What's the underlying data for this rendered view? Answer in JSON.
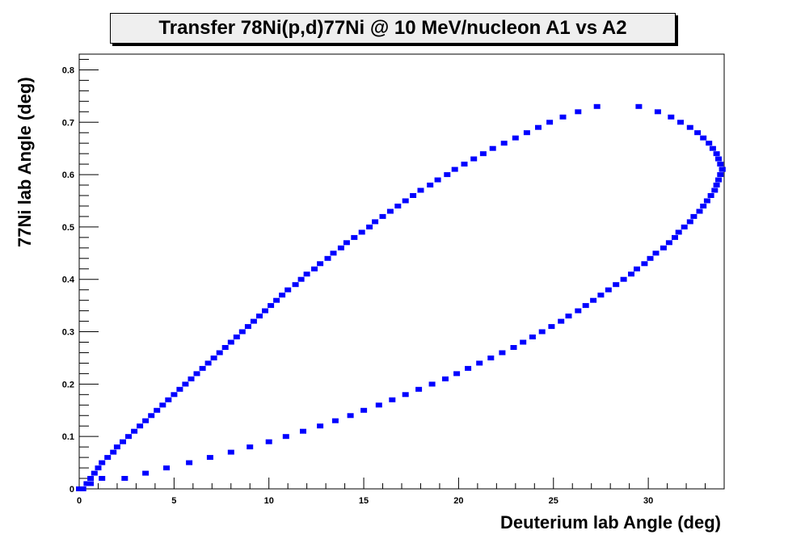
{
  "chart_data": {
    "type": "scatter",
    "title": "Transfer 78Ni(p,d)77Ni @ 10 MeV/nucleon A1 vs A2",
    "xlabel": "Deuterium lab Angle (deg)",
    "ylabel": "77Ni lab Angle (deg)",
    "xlim": [
      0,
      34
    ],
    "ylim": [
      0,
      0.83
    ],
    "xticks": [
      "0",
      "5",
      "10",
      "15",
      "20",
      "25",
      "30"
    ],
    "yticks": [
      "0",
      "0.1",
      "0.2",
      "0.3",
      "0.4",
      "0.5",
      "0.6",
      "0.7",
      "0.8"
    ],
    "grid": false,
    "marker_color": "#0000ff",
    "series": [
      {
        "points": [
          [
            0.0,
            0.0
          ],
          [
            0.2,
            0.0
          ],
          [
            0.4,
            0.01
          ],
          [
            0.6,
            0.02
          ],
          [
            0.8,
            0.03
          ],
          [
            1.0,
            0.04
          ],
          [
            1.2,
            0.05
          ],
          [
            1.5,
            0.06
          ],
          [
            1.8,
            0.07
          ],
          [
            2.0,
            0.08
          ],
          [
            2.3,
            0.09
          ],
          [
            2.6,
            0.1
          ],
          [
            2.9,
            0.11
          ],
          [
            3.2,
            0.12
          ],
          [
            3.5,
            0.13
          ],
          [
            3.8,
            0.14
          ],
          [
            4.1,
            0.15
          ],
          [
            4.4,
            0.16
          ],
          [
            4.7,
            0.17
          ],
          [
            5.0,
            0.18
          ],
          [
            5.3,
            0.19
          ],
          [
            5.6,
            0.2
          ],
          [
            5.9,
            0.21
          ],
          [
            6.2,
            0.22
          ],
          [
            6.5,
            0.23
          ],
          [
            6.8,
            0.24
          ],
          [
            7.1,
            0.25
          ],
          [
            7.4,
            0.26
          ],
          [
            7.7,
            0.27
          ],
          [
            8.0,
            0.28
          ],
          [
            8.3,
            0.29
          ],
          [
            8.6,
            0.3
          ],
          [
            8.9,
            0.31
          ],
          [
            9.2,
            0.32
          ],
          [
            9.5,
            0.33
          ],
          [
            9.8,
            0.34
          ],
          [
            10.1,
            0.35
          ],
          [
            10.4,
            0.36
          ],
          [
            10.7,
            0.37
          ],
          [
            11.0,
            0.38
          ],
          [
            11.4,
            0.39
          ],
          [
            11.7,
            0.4
          ],
          [
            12.0,
            0.41
          ],
          [
            12.4,
            0.42
          ],
          [
            12.7,
            0.43
          ],
          [
            13.1,
            0.44
          ],
          [
            13.4,
            0.45
          ],
          [
            13.8,
            0.46
          ],
          [
            14.1,
            0.47
          ],
          [
            14.5,
            0.48
          ],
          [
            14.9,
            0.49
          ],
          [
            15.3,
            0.5
          ],
          [
            15.6,
            0.51
          ],
          [
            16.0,
            0.52
          ],
          [
            16.4,
            0.53
          ],
          [
            16.8,
            0.54
          ],
          [
            17.2,
            0.55
          ],
          [
            17.6,
            0.56
          ],
          [
            18.0,
            0.57
          ],
          [
            18.5,
            0.58
          ],
          [
            18.9,
            0.59
          ],
          [
            19.4,
            0.6
          ],
          [
            19.8,
            0.61
          ],
          [
            20.3,
            0.62
          ],
          [
            20.8,
            0.63
          ],
          [
            21.3,
            0.64
          ],
          [
            21.8,
            0.65
          ],
          [
            22.4,
            0.66
          ],
          [
            23.0,
            0.67
          ],
          [
            23.6,
            0.68
          ],
          [
            24.2,
            0.69
          ],
          [
            24.8,
            0.7
          ],
          [
            25.5,
            0.71
          ],
          [
            26.3,
            0.72
          ],
          [
            27.3,
            0.73
          ],
          [
            29.5,
            0.73
          ],
          [
            30.5,
            0.72
          ],
          [
            31.2,
            0.71
          ],
          [
            31.7,
            0.7
          ],
          [
            32.2,
            0.69
          ],
          [
            32.6,
            0.68
          ],
          [
            32.9,
            0.67
          ],
          [
            33.2,
            0.66
          ],
          [
            33.4,
            0.65
          ],
          [
            33.6,
            0.64
          ],
          [
            33.7,
            0.63
          ],
          [
            33.8,
            0.62
          ],
          [
            33.9,
            0.61
          ]
        ]
      },
      {
        "points": [
          [
            0.0,
            0.0
          ],
          [
            0.6,
            0.01
          ],
          [
            1.2,
            0.02
          ],
          [
            2.4,
            0.02
          ],
          [
            3.5,
            0.03
          ],
          [
            4.6,
            0.04
          ],
          [
            5.8,
            0.05
          ],
          [
            6.9,
            0.06
          ],
          [
            8.0,
            0.07
          ],
          [
            9.0,
            0.08
          ],
          [
            10.0,
            0.09
          ],
          [
            10.9,
            0.1
          ],
          [
            11.8,
            0.11
          ],
          [
            12.7,
            0.12
          ],
          [
            13.5,
            0.13
          ],
          [
            14.3,
            0.14
          ],
          [
            15.0,
            0.15
          ],
          [
            15.8,
            0.16
          ],
          [
            16.5,
            0.17
          ],
          [
            17.2,
            0.18
          ],
          [
            17.9,
            0.19
          ],
          [
            18.6,
            0.2
          ],
          [
            19.3,
            0.21
          ],
          [
            19.9,
            0.22
          ],
          [
            20.5,
            0.23
          ],
          [
            21.1,
            0.24
          ],
          [
            21.7,
            0.25
          ],
          [
            22.3,
            0.26
          ],
          [
            22.9,
            0.27
          ],
          [
            23.4,
            0.28
          ],
          [
            23.9,
            0.29
          ],
          [
            24.4,
            0.3
          ],
          [
            24.9,
            0.31
          ],
          [
            25.4,
            0.32
          ],
          [
            25.8,
            0.33
          ],
          [
            26.3,
            0.34
          ],
          [
            26.7,
            0.35
          ],
          [
            27.1,
            0.36
          ],
          [
            27.5,
            0.37
          ],
          [
            27.9,
            0.38
          ],
          [
            28.3,
            0.39
          ],
          [
            28.7,
            0.4
          ],
          [
            29.1,
            0.41
          ],
          [
            29.4,
            0.42
          ],
          [
            29.8,
            0.43
          ],
          [
            30.1,
            0.44
          ],
          [
            30.4,
            0.45
          ],
          [
            30.8,
            0.46
          ],
          [
            31.1,
            0.47
          ],
          [
            31.4,
            0.48
          ],
          [
            31.6,
            0.49
          ],
          [
            31.9,
            0.5
          ],
          [
            32.2,
            0.51
          ],
          [
            32.4,
            0.52
          ],
          [
            32.7,
            0.53
          ],
          [
            32.9,
            0.54
          ],
          [
            33.1,
            0.55
          ],
          [
            33.3,
            0.56
          ],
          [
            33.5,
            0.57
          ],
          [
            33.6,
            0.58
          ],
          [
            33.7,
            0.59
          ],
          [
            33.8,
            0.6
          ],
          [
            33.9,
            0.61
          ]
        ]
      }
    ]
  }
}
